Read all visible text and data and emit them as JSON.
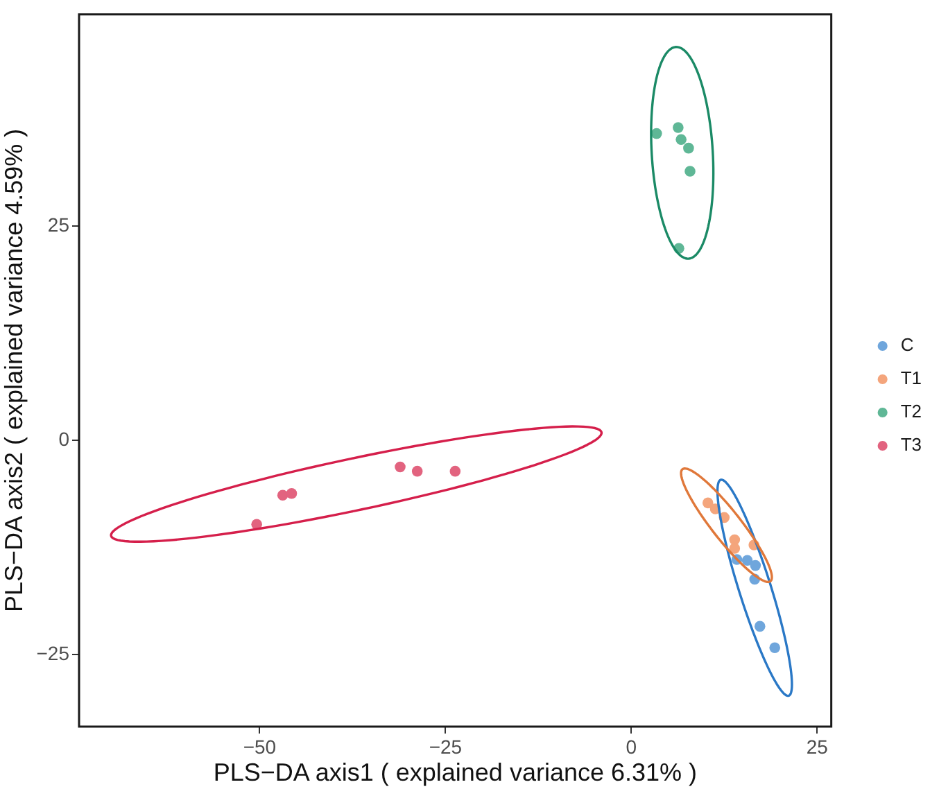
{
  "chart_data": {
    "type": "scatter",
    "xlabel": "PLS−DA axis1 ( explained variance 6.31% )",
    "ylabel": "PLS−DA axis2 ( explained variance 4.59% )",
    "xlim": [
      -74.3,
      26.9
    ],
    "ylim": [
      -33.4,
      49.7
    ],
    "xticks": [
      {
        "value": -50,
        "label": "−50"
      },
      {
        "value": -25,
        "label": "−25"
      },
      0,
      25
    ],
    "yticks": [
      {
        "value": -25,
        "label": "−25"
      },
      0,
      25
    ],
    "legend": "right",
    "marker": "circle",
    "series": [
      {
        "name": "C",
        "color": "#6fa6dc",
        "x": [
          14.2,
          15.6,
          16.7,
          16.6,
          17.3,
          19.3
        ],
        "values": [
          -13.9,
          -14.0,
          -14.6,
          -16.2,
          -21.7,
          -24.2
        ]
      },
      {
        "name": "T1",
        "color": "#f4a57c",
        "x": [
          10.3,
          11.3,
          12.5,
          13.9,
          13.9,
          16.5
        ],
        "values": [
          -7.3,
          -8.0,
          -9.0,
          -11.6,
          -12.6,
          -12.2
        ]
      },
      {
        "name": "T2",
        "color": "#5fb796",
        "x": [
          3.4,
          6.3,
          6.7,
          7.7,
          7.9,
          6.4
        ],
        "values": [
          35.8,
          36.5,
          35.1,
          34.1,
          31.4,
          22.4
        ]
      },
      {
        "name": "T3",
        "color": "#e2637f",
        "x": [
          -50.4,
          -46.9,
          -45.7,
          -31.1,
          -28.8,
          -23.7
        ],
        "values": [
          -9.8,
          -6.4,
          -6.2,
          -3.1,
          -3.6,
          -3.6
        ]
      }
    ]
  }
}
